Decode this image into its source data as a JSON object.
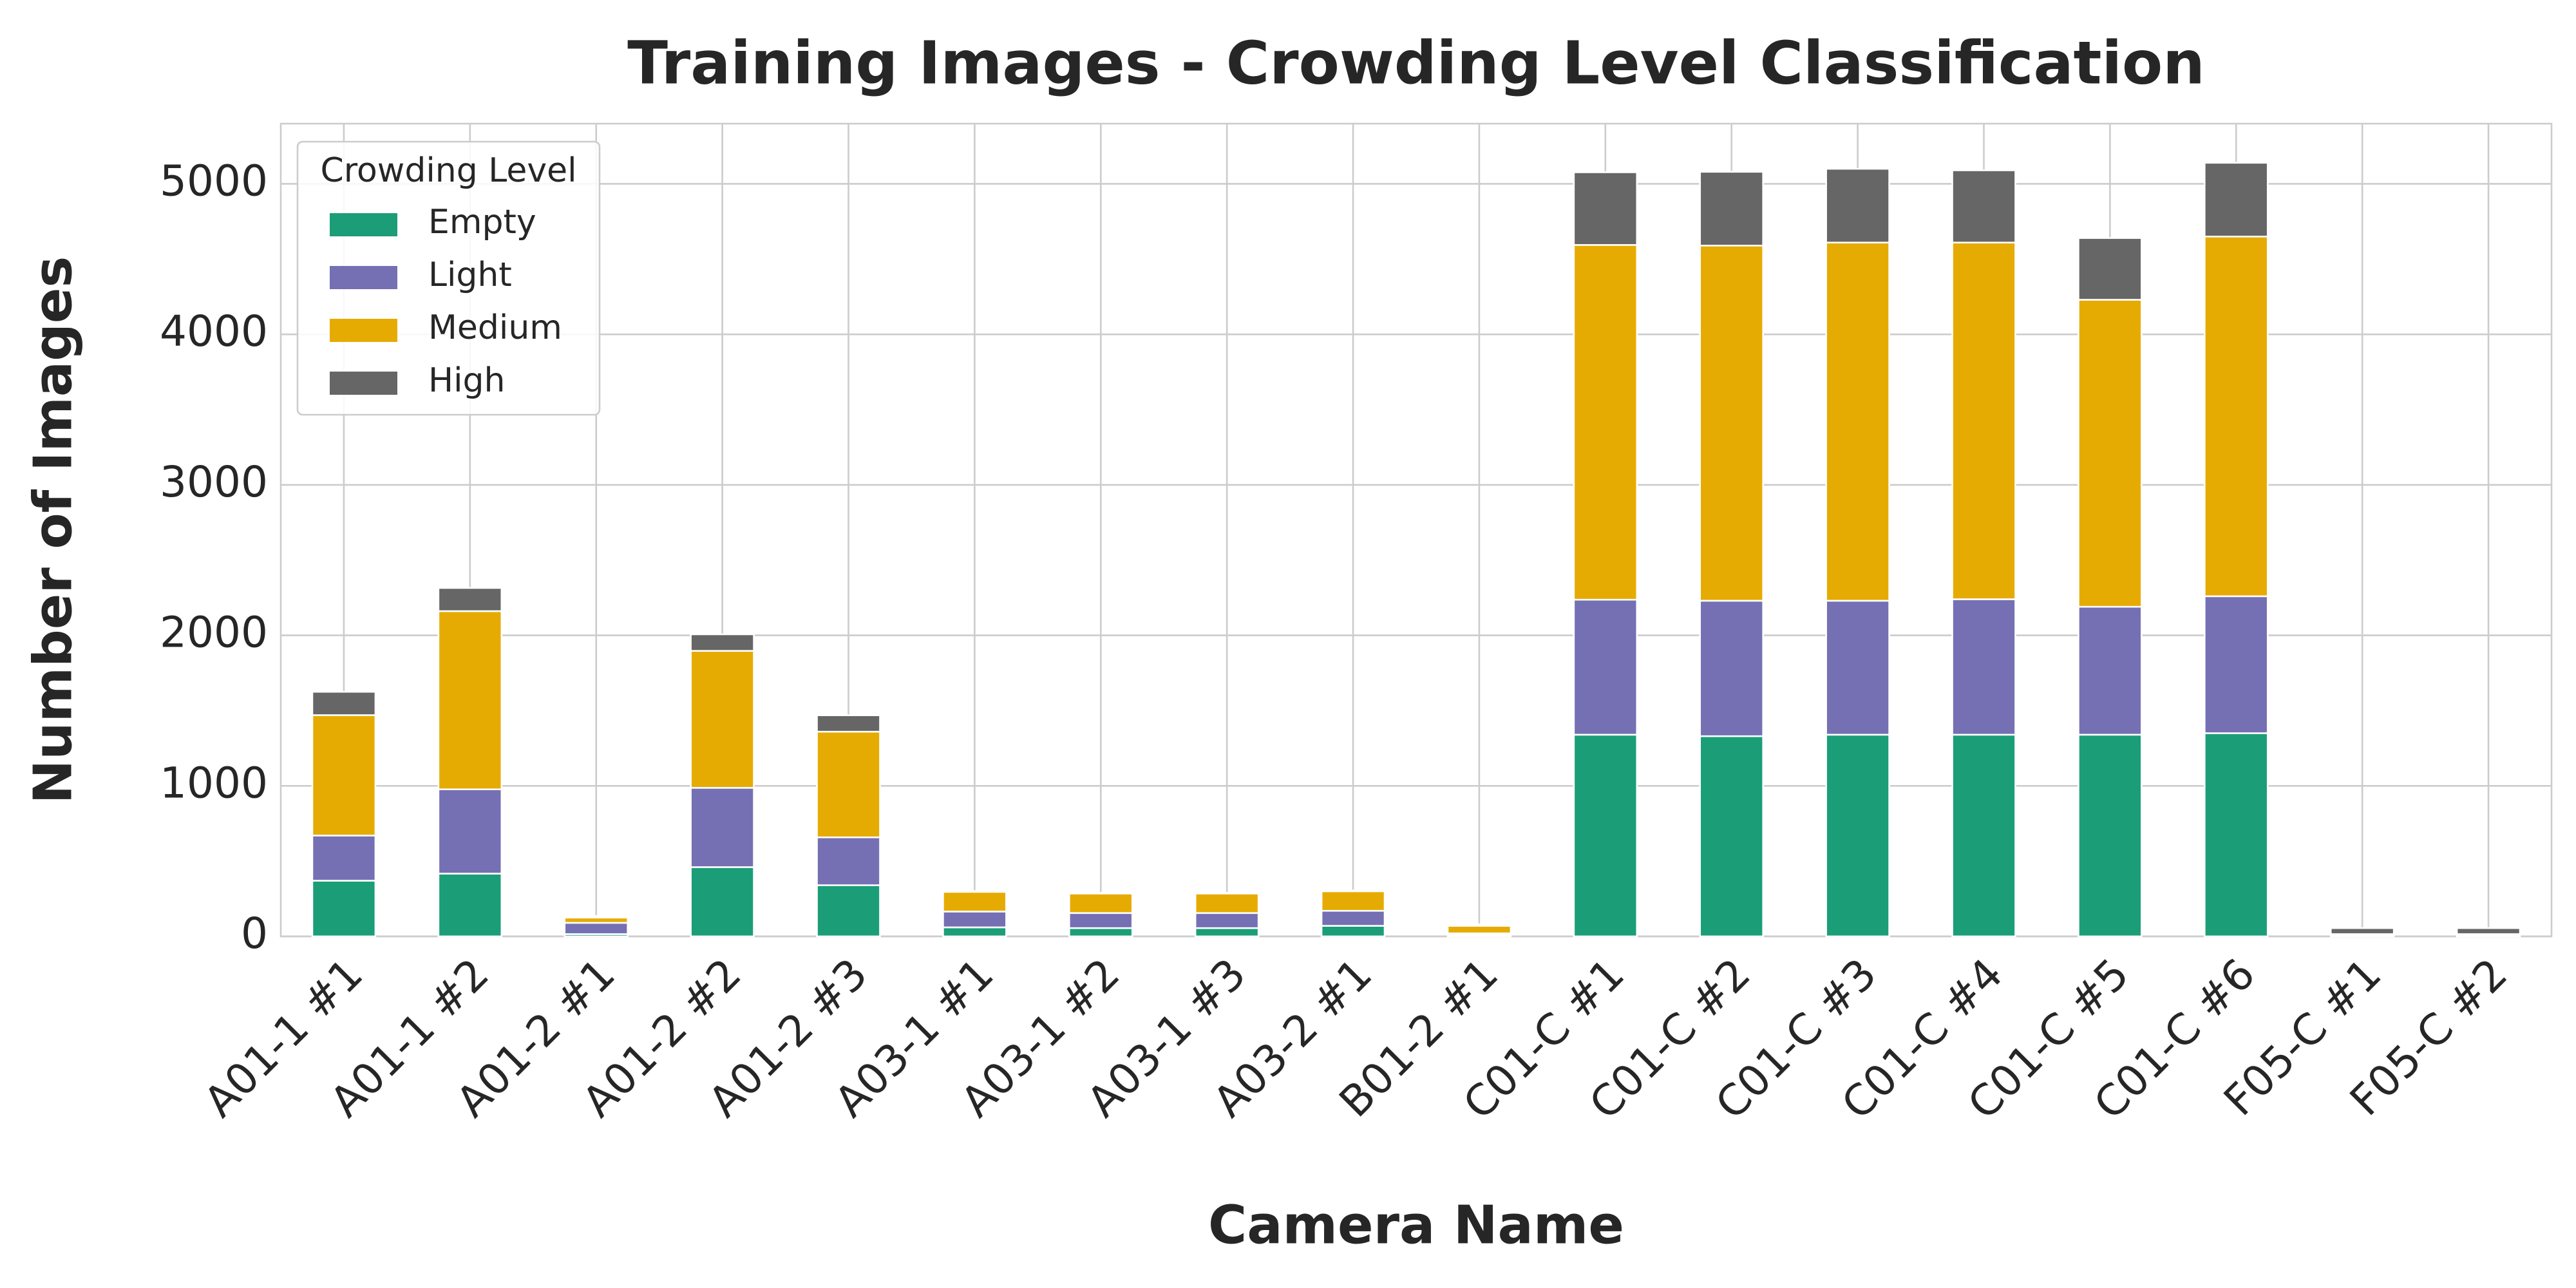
{
  "chart_data": {
    "type": "stacked_bar",
    "title": "Training Images - Crowding Level Classification",
    "x_label": "Camera Name",
    "y_label": "Number of Images",
    "categories": [
      "A01-1 #1",
      "A01-1 #2",
      "A01-2 #1",
      "A01-2 #2",
      "A01-2 #3",
      "A03-1 #1",
      "A03-1 #2",
      "A03-1 #3",
      "A03-2 #1",
      "B01-2 #1",
      "C01-C #1",
      "C01-C #2",
      "C01-C #3",
      "C01-C #4",
      "C01-C #5",
      "C01-C #6",
      "F05-C #1",
      "F05-C #2"
    ],
    "series": [
      {
        "name": "Empty",
        "color": "#1b9e77",
        "values": [
          370,
          417,
          15,
          460,
          340,
          60,
          55,
          55,
          70,
          10,
          1340,
          1330,
          1340,
          1340,
          1340,
          1350,
          5,
          5
        ]
      },
      {
        "name": "Light",
        "color": "#7570b3",
        "values": [
          300,
          560,
          75,
          527,
          318,
          105,
          100,
          100,
          100,
          10,
          897,
          900,
          890,
          900,
          850,
          910,
          5,
          5
        ]
      },
      {
        "name": "Medium",
        "color": "#e6ab02",
        "values": [
          800,
          1184,
          35,
          910,
          702,
          131,
          130,
          130,
          130,
          50,
          2357,
          2360,
          2380,
          2370,
          2040,
          2390,
          5,
          5
        ]
      },
      {
        "name": "High",
        "color": "#666666",
        "values": [
          155,
          154,
          10,
          110,
          109,
          5,
          5,
          5,
          5,
          10,
          483,
          490,
          490,
          480,
          410,
          490,
          40,
          40
        ]
      }
    ],
    "legend_title": "Crowding Level",
    "legend": "upper left",
    "ylim": [
      0,
      5400
    ],
    "yticks": [
      0,
      1000,
      2000,
      3000,
      4000,
      5000
    ],
    "grid": true
  }
}
